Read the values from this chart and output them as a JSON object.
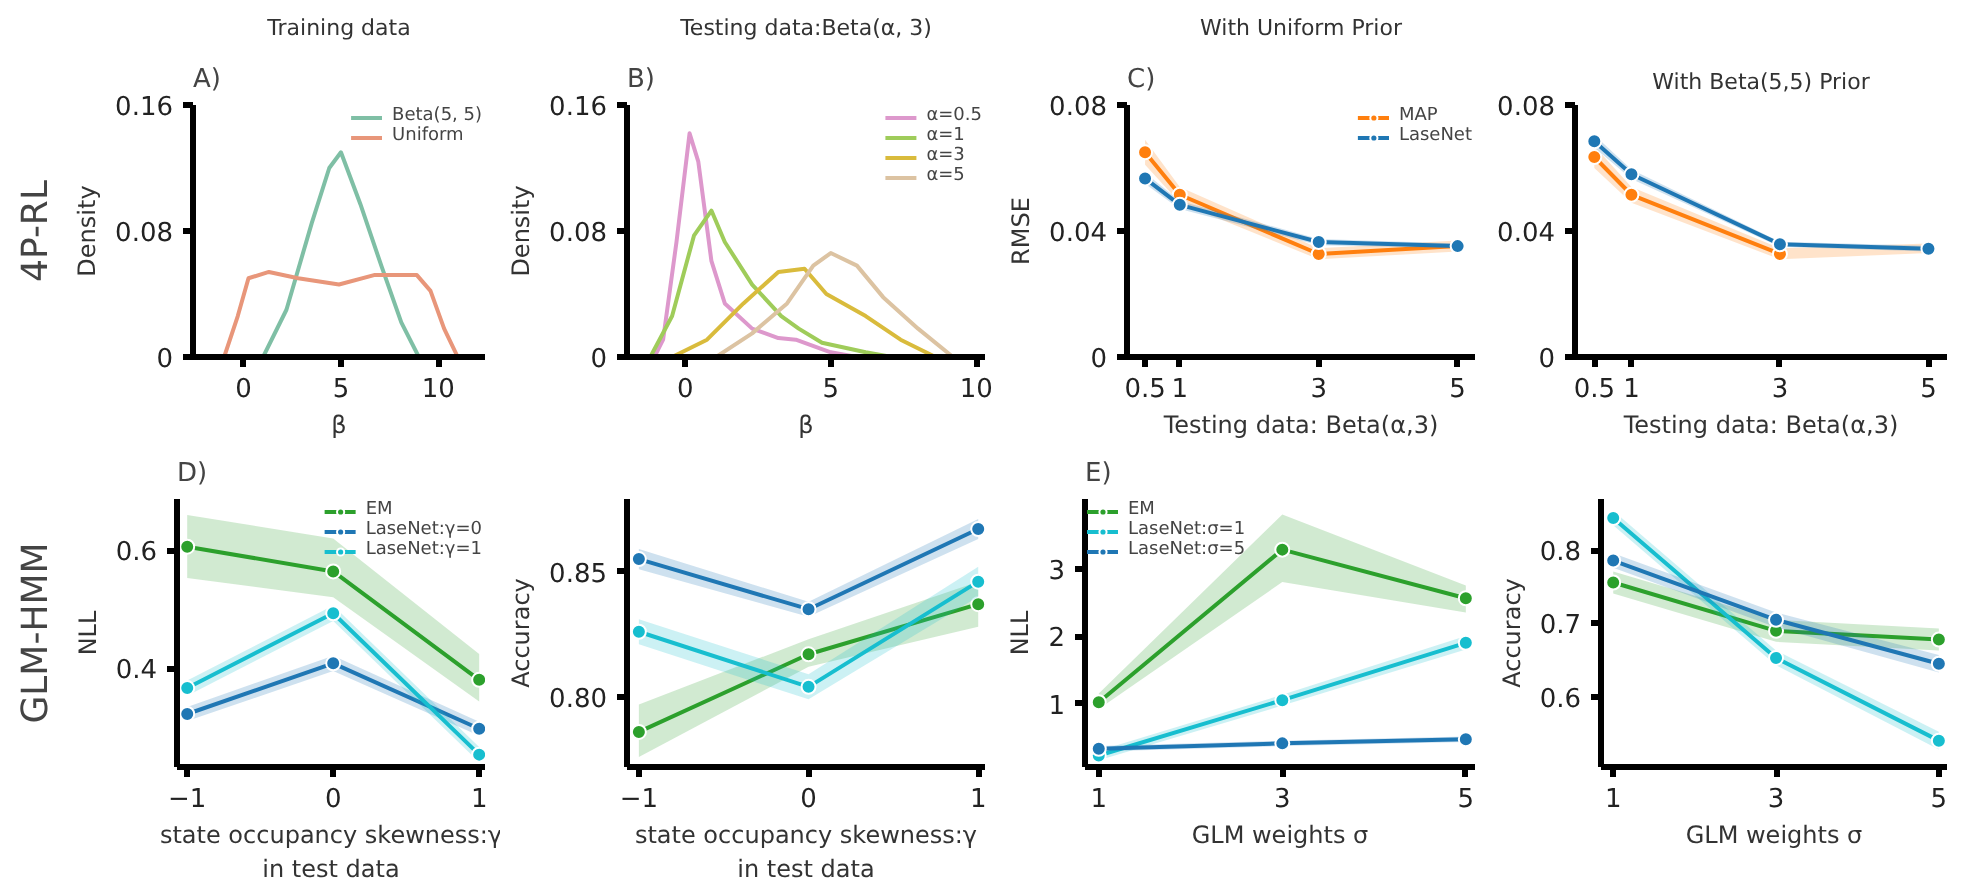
{
  "chart_data": [
    {
      "type": "line",
      "title": "Training data",
      "xlabel": "β",
      "ylabel": "Density",
      "annotations": [
        "A)",
        "4P-RL"
      ],
      "xlim": [
        -2.6,
        12.4
      ],
      "ylim": [
        0,
        0.16
      ],
      "xticks": [
        0,
        5,
        10
      ],
      "yticks": [
        0,
        0.08,
        0.16
      ],
      "legend": "top right",
      "series": [
        {
          "name": "Beta(5, 5)",
          "color": "#7fbfa5",
          "x": [
            1.0,
            2.2,
            3.5,
            4.4,
            5.0,
            6.0,
            7.1,
            8.1,
            9.0
          ],
          "values": [
            0,
            0.03,
            0.085,
            0.12,
            0.13,
            0.097,
            0.057,
            0.022,
            0
          ]
        },
        {
          "name": "Uniform",
          "color": "#e8967a",
          "x": [
            -1.0,
            -0.3,
            0.25,
            1.3,
            2.8,
            4.9,
            6.7,
            8.9,
            9.6,
            10.3,
            11.0
          ],
          "values": [
            0,
            0.026,
            0.05,
            0.054,
            0.05,
            0.046,
            0.052,
            0.052,
            0.042,
            0.018,
            0
          ]
        }
      ]
    },
    {
      "type": "line",
      "title": "Testing data:Beta(α, 3)",
      "xlabel": "β",
      "ylabel": "Density",
      "annotations": [
        "B)"
      ],
      "xlim": [
        -2.0,
        10.3
      ],
      "ylim": [
        0,
        0.16
      ],
      "xticks": [
        0,
        5,
        10
      ],
      "yticks": [
        0,
        0.08,
        0.16
      ],
      "legend": "top right",
      "series": [
        {
          "name": "α=0.5",
          "color": "#dd98cc",
          "x": [
            -1.06,
            -0.76,
            -0.3,
            0.15,
            0.45,
            0.9,
            1.36,
            2.3,
            3.2,
            3.8,
            5.0,
            5.9
          ],
          "values": [
            0,
            0.011,
            0.073,
            0.142,
            0.124,
            0.061,
            0.034,
            0.018,
            0.012,
            0.011,
            0.003,
            0
          ]
        },
        {
          "name": "α=1",
          "color": "#9fcc5a",
          "x": [
            -1.2,
            -0.45,
            0.3,
            0.9,
            1.36,
            2.3,
            3.3,
            3.9,
            4.7,
            6.2,
            7.1
          ],
          "values": [
            0,
            0.026,
            0.077,
            0.093,
            0.073,
            0.046,
            0.026,
            0.018,
            0.009,
            0.003,
            0
          ]
        },
        {
          "name": "α=3",
          "color": "#d9bb3c",
          "x": [
            -0.45,
            0.75,
            2.0,
            3.2,
            4.1,
            4.85,
            6.2,
            7.4,
            8.6
          ],
          "values": [
            0,
            0.011,
            0.034,
            0.054,
            0.056,
            0.04,
            0.026,
            0.011,
            0
          ]
        },
        {
          "name": "α=5",
          "color": "#dcc3a2",
          "x": [
            1.06,
            2.3,
            3.5,
            4.4,
            5.0,
            5.9,
            6.8,
            8.0,
            9.2
          ],
          "values": [
            0,
            0.015,
            0.034,
            0.058,
            0.066,
            0.058,
            0.038,
            0.018,
            0
          ]
        }
      ]
    },
    {
      "type": "line",
      "title": "With Uniform Prior",
      "xlabel": "Testing data: Beta(α,3)",
      "ylabel": "RMSE",
      "annotations": [
        "C)"
      ],
      "x": [
        0.5,
        1,
        3,
        5
      ],
      "xlim": [
        0.24,
        5.25
      ],
      "ylim": [
        0,
        0.08
      ],
      "xticks": [
        0.5,
        1,
        3,
        5
      ],
      "yticks": [
        0,
        0.04,
        0.08
      ],
      "legend": "top right",
      "marker": "circle",
      "series": [
        {
          "name": "MAP",
          "color": "#ff7f0e",
          "values": [
            0.065,
            0.0515,
            0.0327,
            0.0352
          ],
          "lower": [
            0.061,
            0.049,
            0.031,
            0.0335
          ],
          "upper": [
            0.069,
            0.054,
            0.0345,
            0.037
          ]
        },
        {
          "name": "LaseNet",
          "color": "#1f77b4",
          "values": [
            0.0567,
            0.0483,
            0.0365,
            0.0352
          ],
          "lower": [
            0.055,
            0.047,
            0.0355,
            0.0345
          ],
          "upper": [
            0.0585,
            0.0495,
            0.0375,
            0.036
          ]
        }
      ]
    },
    {
      "type": "line",
      "title": "With Beta(5,5) Prior",
      "xlabel": "Testing data: Beta(α,3)",
      "x": [
        0.5,
        1,
        3,
        5
      ],
      "xlim": [
        0.24,
        5.25
      ],
      "ylim": [
        0,
        0.08
      ],
      "xticks": [
        0.5,
        1,
        3,
        5
      ],
      "yticks": [
        0,
        0.04,
        0.08
      ],
      "marker": "circle",
      "series": [
        {
          "color": "#ff7f0e",
          "values": [
            0.0635,
            0.0515,
            0.0327,
            null
          ],
          "lower": [
            0.06,
            0.049,
            0.031,
            0.033
          ],
          "upper": [
            0.067,
            0.054,
            0.0345,
            0.036
          ]
        },
        {
          "color": "#1f77b4",
          "values": [
            0.0685,
            0.058,
            0.0358,
            0.0344
          ],
          "lower": [
            0.0665,
            0.0565,
            0.035,
            0.0335
          ],
          "upper": [
            0.0705,
            0.0595,
            0.0366,
            0.0353
          ]
        }
      ]
    },
    {
      "type": "line",
      "xlabel": "state occupancy skewness:γ\nin test data",
      "ylabel": "NLL",
      "annotations": [
        "D)",
        "GLM-HMM"
      ],
      "x": [
        -1,
        0,
        1
      ],
      "xlim": [
        -1.07,
        1.04
      ],
      "ylim": [
        0.232,
        0.687
      ],
      "xticks": [
        {
          "value": -1,
          "label": "−1"
        },
        0,
        1
      ],
      "yticks": [
        0.4,
        0.6
      ],
      "legend": "top right",
      "marker": "circle",
      "series": [
        {
          "name": "EM",
          "color": "#2ca02c",
          "values": [
            0.606,
            0.564,
            0.38
          ],
          "lower": [
            0.553,
            0.52,
            0.343
          ],
          "upper": [
            0.66,
            0.62,
            0.424
          ]
        },
        {
          "name": "LaseNet:γ=0",
          "color": "#1f77b4",
          "values": [
            0.322,
            0.408,
            0.297
          ],
          "lower": [
            0.31,
            0.395,
            0.285
          ],
          "upper": [
            0.334,
            0.421,
            0.309
          ]
        },
        {
          "name": "LaseNet:γ=1",
          "color": "#17becf",
          "values": [
            0.366,
            0.493,
            0.253
          ],
          "lower": [
            0.353,
            0.48,
            0.24
          ],
          "upper": [
            0.379,
            0.506,
            0.266
          ]
        }
      ]
    },
    {
      "type": "line",
      "xlabel": "state occupancy skewness:γ\nin test data",
      "ylabel": "Accuracy",
      "x": [
        -1,
        0,
        1
      ],
      "xlim": [
        -1.07,
        1.04
      ],
      "ylim": [
        0.772,
        0.879
      ],
      "xticks": [
        {
          "value": -1,
          "label": "−1"
        },
        0,
        1
      ],
      "yticks": [
        {
          "value": 0.8,
          "label": "0.80"
        },
        0.85
      ],
      "marker": "circle",
      "series": [
        {
          "color": "#2ca02c",
          "values": [
            0.786,
            0.817,
            0.837
          ],
          "lower": [
            0.776,
            0.812,
            0.828
          ],
          "upper": [
            0.797,
            0.823,
            0.846
          ]
        },
        {
          "color": "#1f77b4",
          "values": [
            0.855,
            0.835,
            0.867
          ],
          "lower": [
            0.851,
            0.832,
            0.863
          ],
          "upper": [
            0.859,
            0.838,
            0.871
          ]
        },
        {
          "color": "#17becf",
          "values": [
            0.826,
            0.804,
            0.846
          ],
          "lower": [
            0.821,
            0.799,
            0.84
          ],
          "upper": [
            0.831,
            0.809,
            0.852
          ]
        }
      ]
    },
    {
      "type": "line",
      "xlabel": "GLM weights σ",
      "ylabel": "NLL",
      "annotations": [
        "E)"
      ],
      "x": [
        1,
        3,
        5
      ],
      "xlim": [
        0.85,
        5.1
      ],
      "ylim": [
        0.06,
        4.03
      ],
      "xticks": [
        1,
        3,
        5
      ],
      "yticks": [
        1,
        2,
        3
      ],
      "legend": "top left",
      "marker": "circle",
      "series": [
        {
          "name": "EM",
          "color": "#2ca02c",
          "values": [
            1.02,
            3.28,
            2.56
          ],
          "lower": [
            0.92,
            2.8,
            2.35
          ],
          "upper": [
            1.15,
            3.8,
            2.75
          ]
        },
        {
          "name": "LaseNet:σ=1",
          "color": "#17becf",
          "values": [
            0.23,
            1.05,
            1.9
          ],
          "lower": [
            0.16,
            0.97,
            1.8
          ],
          "upper": [
            0.3,
            1.13,
            2.0
          ]
        },
        {
          "name": "LaseNet:σ=5",
          "color": "#1f77b4",
          "values": [
            0.33,
            0.41,
            0.47
          ],
          "lower": [
            0.29,
            0.37,
            0.43
          ],
          "upper": [
            0.37,
            0.45,
            0.51
          ]
        }
      ]
    },
    {
      "type": "line",
      "xlabel": "GLM weights σ",
      "ylabel": "Accuracy",
      "x": [
        1,
        3,
        5
      ],
      "xlim": [
        0.85,
        5.1
      ],
      "ylim": [
        0.504,
        0.87
      ],
      "xticks": [
        1,
        3,
        5
      ],
      "yticks": [
        0.6,
        0.7,
        0.8
      ],
      "marker": "circle",
      "series": [
        {
          "color": "#2ca02c",
          "values": [
            0.756,
            0.69,
            0.678
          ],
          "lower": [
            0.741,
            0.675,
            0.663
          ],
          "upper": [
            0.771,
            0.705,
            0.693
          ]
        },
        {
          "color": "#17becf",
          "values": [
            0.844,
            0.653,
            0.54
          ],
          "lower": [
            0.834,
            0.643,
            0.528
          ],
          "upper": [
            0.854,
            0.663,
            0.552
          ]
        },
        {
          "color": "#1f77b4",
          "values": [
            0.786,
            0.705,
            0.645
          ],
          "lower": [
            0.776,
            0.695,
            0.633
          ],
          "upper": [
            0.796,
            0.715,
            0.657
          ]
        }
      ]
    }
  ]
}
